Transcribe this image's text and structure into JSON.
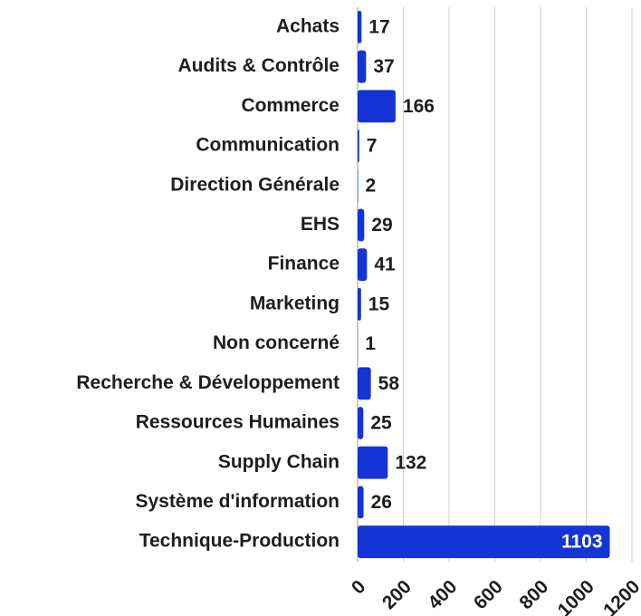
{
  "chart_data": {
    "type": "hbar",
    "categories": [
      "Achats",
      "Audits & Contrôle",
      "Commerce",
      "Communication",
      "Direction Générale",
      "EHS",
      "Finance",
      "Marketing",
      "Non concerné",
      "Recherche & Développement",
      "Ressources Humaines",
      "Supply Chain",
      "Système d'information",
      "Technique-Production"
    ],
    "values": [
      17,
      37,
      166,
      7,
      2,
      29,
      41,
      15,
      1,
      58,
      25,
      132,
      26,
      1103
    ],
    "color": "#1434d6",
    "xlim": [
      0,
      1200
    ],
    "xticks": [
      0,
      200,
      400,
      600,
      800,
      1000,
      1200
    ],
    "grid": true
  }
}
